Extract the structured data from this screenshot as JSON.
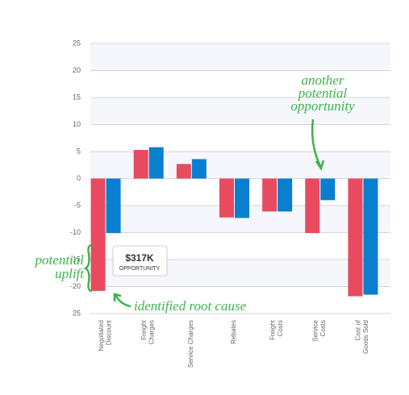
{
  "chart_data": {
    "type": "bar",
    "categories": [
      [
        "Negotiated",
        "Discount"
      ],
      [
        "Freight",
        "Charges"
      ],
      [
        "Service Charges"
      ],
      [
        "Rebates"
      ],
      [
        "Freight",
        "Costs"
      ],
      [
        "Service",
        "Costs"
      ],
      [
        "Cost of",
        "Goods Sold"
      ]
    ],
    "series": [
      {
        "color": "#e84a5f",
        "values": [
          -20.8,
          5.3,
          2.7,
          -7.2,
          -6.1,
          -10.1,
          -21.8
        ]
      },
      {
        "color": "#0a7fcf",
        "values": [
          -10.1,
          5.8,
          3.6,
          -7.3,
          -6.1,
          -4.0,
          -21.5
        ]
      }
    ],
    "ylim": [
      -25,
      25
    ],
    "yticks": [
      {
        "value": -25,
        "label": "25"
      },
      -20,
      -15,
      -10,
      -5,
      0,
      5,
      10,
      15,
      20,
      25
    ],
    "grid": true,
    "tooltip": {
      "value": "$317K",
      "label": "OPPORTUNITY"
    },
    "annotations": {
      "opportunity": [
        "another",
        "potential",
        "opportunity"
      ],
      "uplift": [
        "potential",
        "uplift"
      ],
      "root_cause": "identified root cause"
    }
  }
}
